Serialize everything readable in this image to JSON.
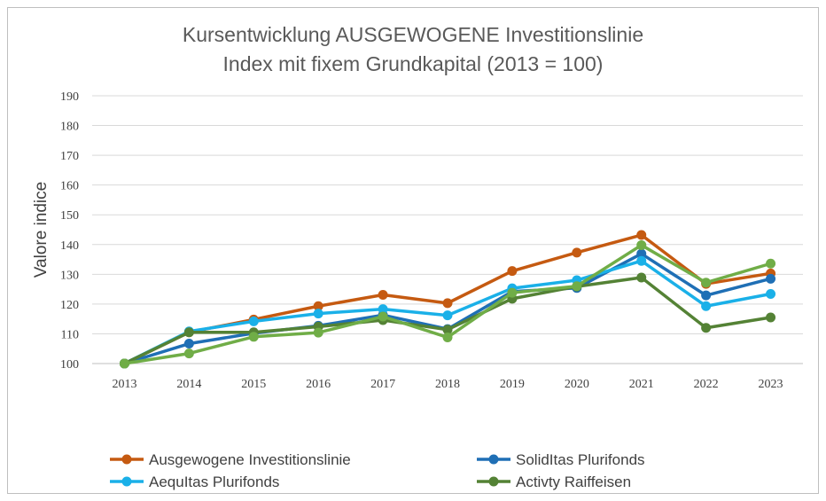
{
  "chart_data": {
    "type": "line",
    "title": "Kursentwicklung AUSGEWOGENE Investitionslinie",
    "subtitle": "Index mit fixem Grundkapital (2013 = 100)",
    "xlabel": "",
    "ylabel": "Valore indice",
    "ylim": [
      100,
      190
    ],
    "yticks": [
      100,
      110,
      120,
      130,
      140,
      150,
      160,
      170,
      180,
      190
    ],
    "grid": true,
    "legend_position": "bottom",
    "categories": [
      "2013",
      "2014",
      "2015",
      "2016",
      "2017",
      "2018",
      "2019",
      "2020",
      "2021",
      "2022",
      "2023"
    ],
    "series": [
      {
        "name": "Ausgewogene Investitionslinie",
        "color": "#c55a11",
        "values": [
          100,
          110.5,
          114.8,
          119.3,
          123.1,
          120.3,
          131.1,
          137.3,
          143.2,
          126.8,
          130.3
        ]
      },
      {
        "name": "SolidItas Plurifonds",
        "color": "#1f6fb5",
        "values": [
          100,
          106.7,
          110.2,
          112.7,
          116.3,
          111.6,
          124.2,
          125.4,
          136.9,
          122.9,
          128.5
        ]
      },
      {
        "name": "AequItas Plurifonds",
        "color": "#1ab0e8",
        "values": [
          100,
          110.8,
          114.2,
          116.8,
          118.3,
          116.2,
          125.3,
          128.0,
          134.5,
          119.3,
          123.4
        ]
      },
      {
        "name": "Activty Raiffeisen",
        "color": "#548235",
        "values": [
          100,
          110.5,
          110.5,
          112.4,
          114.6,
          111.4,
          121.8,
          125.9,
          128.9,
          112.0,
          115.5
        ]
      },
      {
        "name": "",
        "color": "#70ad47",
        "values": [
          100,
          103.4,
          109.0,
          110.4,
          115.8,
          108.8,
          123.8,
          126.0,
          139.8,
          127.2,
          133.6
        ]
      }
    ],
    "legend": [
      {
        "series": 0
      },
      {
        "series": 1
      },
      {
        "series": 2
      },
      {
        "series": 3
      }
    ]
  }
}
